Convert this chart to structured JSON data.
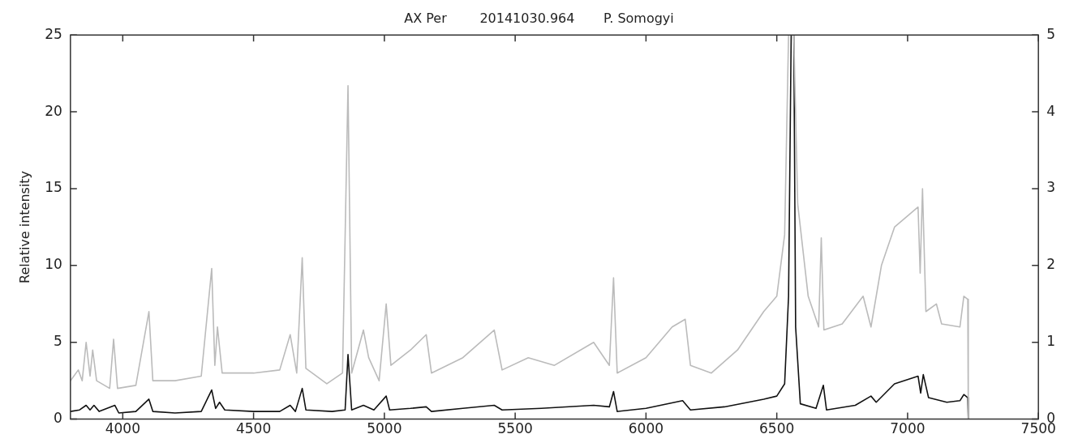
{
  "chart_data": {
    "type": "line",
    "title": "AX Per        20141030.964       P. Somogyi",
    "ylabel": "Relative intensity",
    "xlim": [
      3800,
      7500
    ],
    "xticks": [
      4000,
      4500,
      5000,
      5500,
      6000,
      6500,
      7000,
      7500
    ],
    "ylim": [
      0,
      25
    ],
    "yticks": [
      0,
      5,
      10,
      15,
      20,
      25
    ],
    "y2lim": [
      0,
      5
    ],
    "y2ticks": [
      0,
      1,
      2,
      3,
      4,
      5
    ],
    "grid": false,
    "legend": false,
    "marker": "none",
    "line_style": "solid",
    "series": [
      {
        "color": "#bbbbbb",
        "axis": "y2",
        "x": [
          3800,
          3830,
          3845,
          3860,
          3875,
          3885,
          3900,
          3950,
          3965,
          3980,
          4050,
          4100,
          4115,
          4200,
          4300,
          4340,
          4352,
          4362,
          4380,
          4500,
          4600,
          4640,
          4665,
          4686,
          4700,
          4780,
          4840,
          4861,
          4875,
          4920,
          4940,
          4980,
          5007,
          5025,
          5100,
          5160,
          5180,
          5300,
          5420,
          5450,
          5550,
          5650,
          5800,
          5860,
          5876,
          5890,
          6000,
          6100,
          6150,
          6170,
          6250,
          6350,
          6450,
          6500,
          6530,
          6545,
          6565,
          6580,
          6620,
          6660,
          6670,
          6680,
          6750,
          6830,
          6860,
          6900,
          6950,
          7040,
          7048,
          7057,
          7070,
          7110,
          7130,
          7200,
          7215,
          7230,
          7232
        ],
        "values": [
          0.5,
          0.64,
          0.5,
          1.0,
          0.56,
          0.9,
          0.5,
          0.4,
          1.04,
          0.4,
          0.44,
          1.4,
          0.5,
          0.5,
          0.56,
          1.96,
          0.7,
          1.2,
          0.6,
          0.6,
          0.64,
          1.1,
          0.6,
          2.1,
          0.66,
          0.46,
          0.6,
          4.34,
          0.6,
          1.16,
          0.8,
          0.5,
          1.5,
          0.7,
          0.9,
          1.1,
          0.6,
          0.8,
          1.16,
          0.64,
          0.8,
          0.7,
          1.0,
          0.7,
          1.84,
          0.6,
          0.8,
          1.2,
          1.3,
          0.7,
          0.6,
          0.9,
          1.4,
          1.6,
          2.4,
          5,
          5,
          2.8,
          1.6,
          1.2,
          2.36,
          1.16,
          1.24,
          1.6,
          1.2,
          2.0,
          2.5,
          2.76,
          1.9,
          3.0,
          1.4,
          1.5,
          1.24,
          1.2,
          1.6,
          1.56,
          0
        ]
      },
      {
        "color": "#111111",
        "x": [
          3800,
          3835,
          3860,
          3875,
          3890,
          3910,
          3970,
          3985,
          4050,
          4100,
          4115,
          4200,
          4300,
          4340,
          4355,
          4370,
          4390,
          4500,
          4600,
          4640,
          4660,
          4686,
          4700,
          4800,
          4850,
          4861,
          4875,
          4920,
          4960,
          5007,
          5020,
          5100,
          5160,
          5180,
          5300,
          5420,
          5450,
          5600,
          5800,
          5860,
          5876,
          5890,
          6000,
          6140,
          6170,
          6300,
          6450,
          6500,
          6530,
          6545,
          6555,
          6565,
          6572,
          6590,
          6650,
          6678,
          6690,
          6800,
          6860,
          6880,
          6950,
          7040,
          7050,
          7060,
          7080,
          7150,
          7200,
          7215,
          7230,
          7232
        ],
        "values": [
          0.5,
          0.6,
          0.9,
          0.6,
          0.9,
          0.5,
          0.9,
          0.4,
          0.5,
          1.3,
          0.5,
          0.4,
          0.5,
          1.9,
          0.7,
          1.1,
          0.6,
          0.5,
          0.5,
          0.9,
          0.5,
          2.0,
          0.6,
          0.5,
          0.6,
          4.2,
          0.6,
          0.9,
          0.6,
          1.5,
          0.6,
          0.7,
          0.8,
          0.5,
          0.7,
          0.9,
          0.6,
          0.7,
          0.9,
          0.8,
          1.8,
          0.5,
          0.7,
          1.2,
          0.6,
          0.8,
          1.3,
          1.5,
          2.3,
          8,
          25,
          25,
          6,
          1.0,
          0.7,
          2.2,
          0.6,
          0.9,
          1.5,
          1.1,
          2.3,
          2.8,
          1.7,
          2.9,
          1.4,
          1.1,
          1.2,
          1.6,
          1.4,
          0
        ]
      }
    ]
  }
}
